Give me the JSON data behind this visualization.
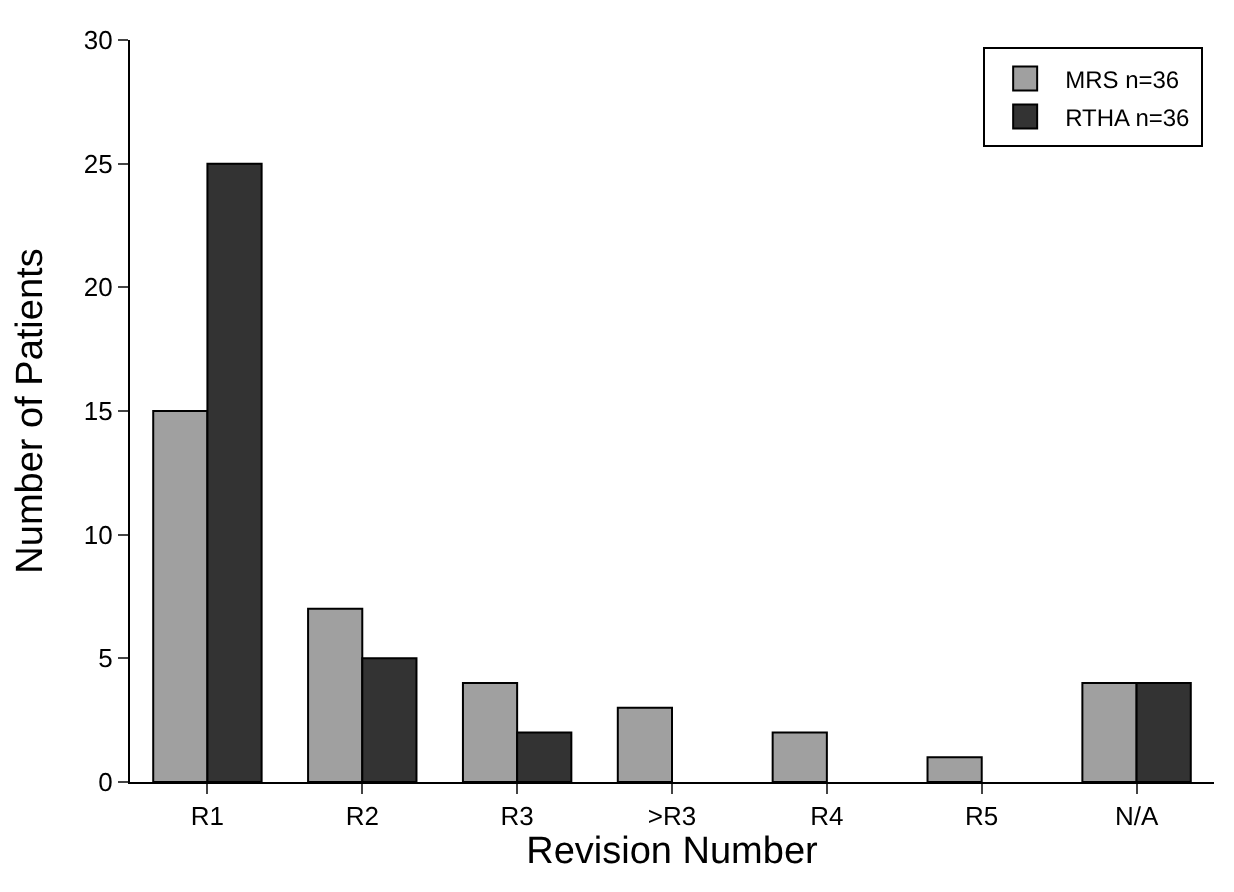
{
  "chart_data": {
    "type": "bar",
    "xlabel": "Revision Number",
    "ylabel": "Number of Patients",
    "categories": [
      "R1",
      "R2",
      "R3",
      ">R3",
      "R4",
      "R5",
      "N/A"
    ],
    "series": [
      {
        "name": "MRS n=36",
        "color": "#a0a0a0",
        "values": [
          15,
          7,
          4,
          3,
          2,
          1,
          4
        ]
      },
      {
        "name": "RTHA n=36",
        "color": "#333333",
        "values": [
          25,
          5,
          2,
          0,
          0,
          0,
          4
        ]
      }
    ],
    "ylim": [
      0,
      30
    ],
    "yticks": [
      0,
      5,
      10,
      15,
      20,
      25,
      30
    ],
    "legend": "top right"
  }
}
